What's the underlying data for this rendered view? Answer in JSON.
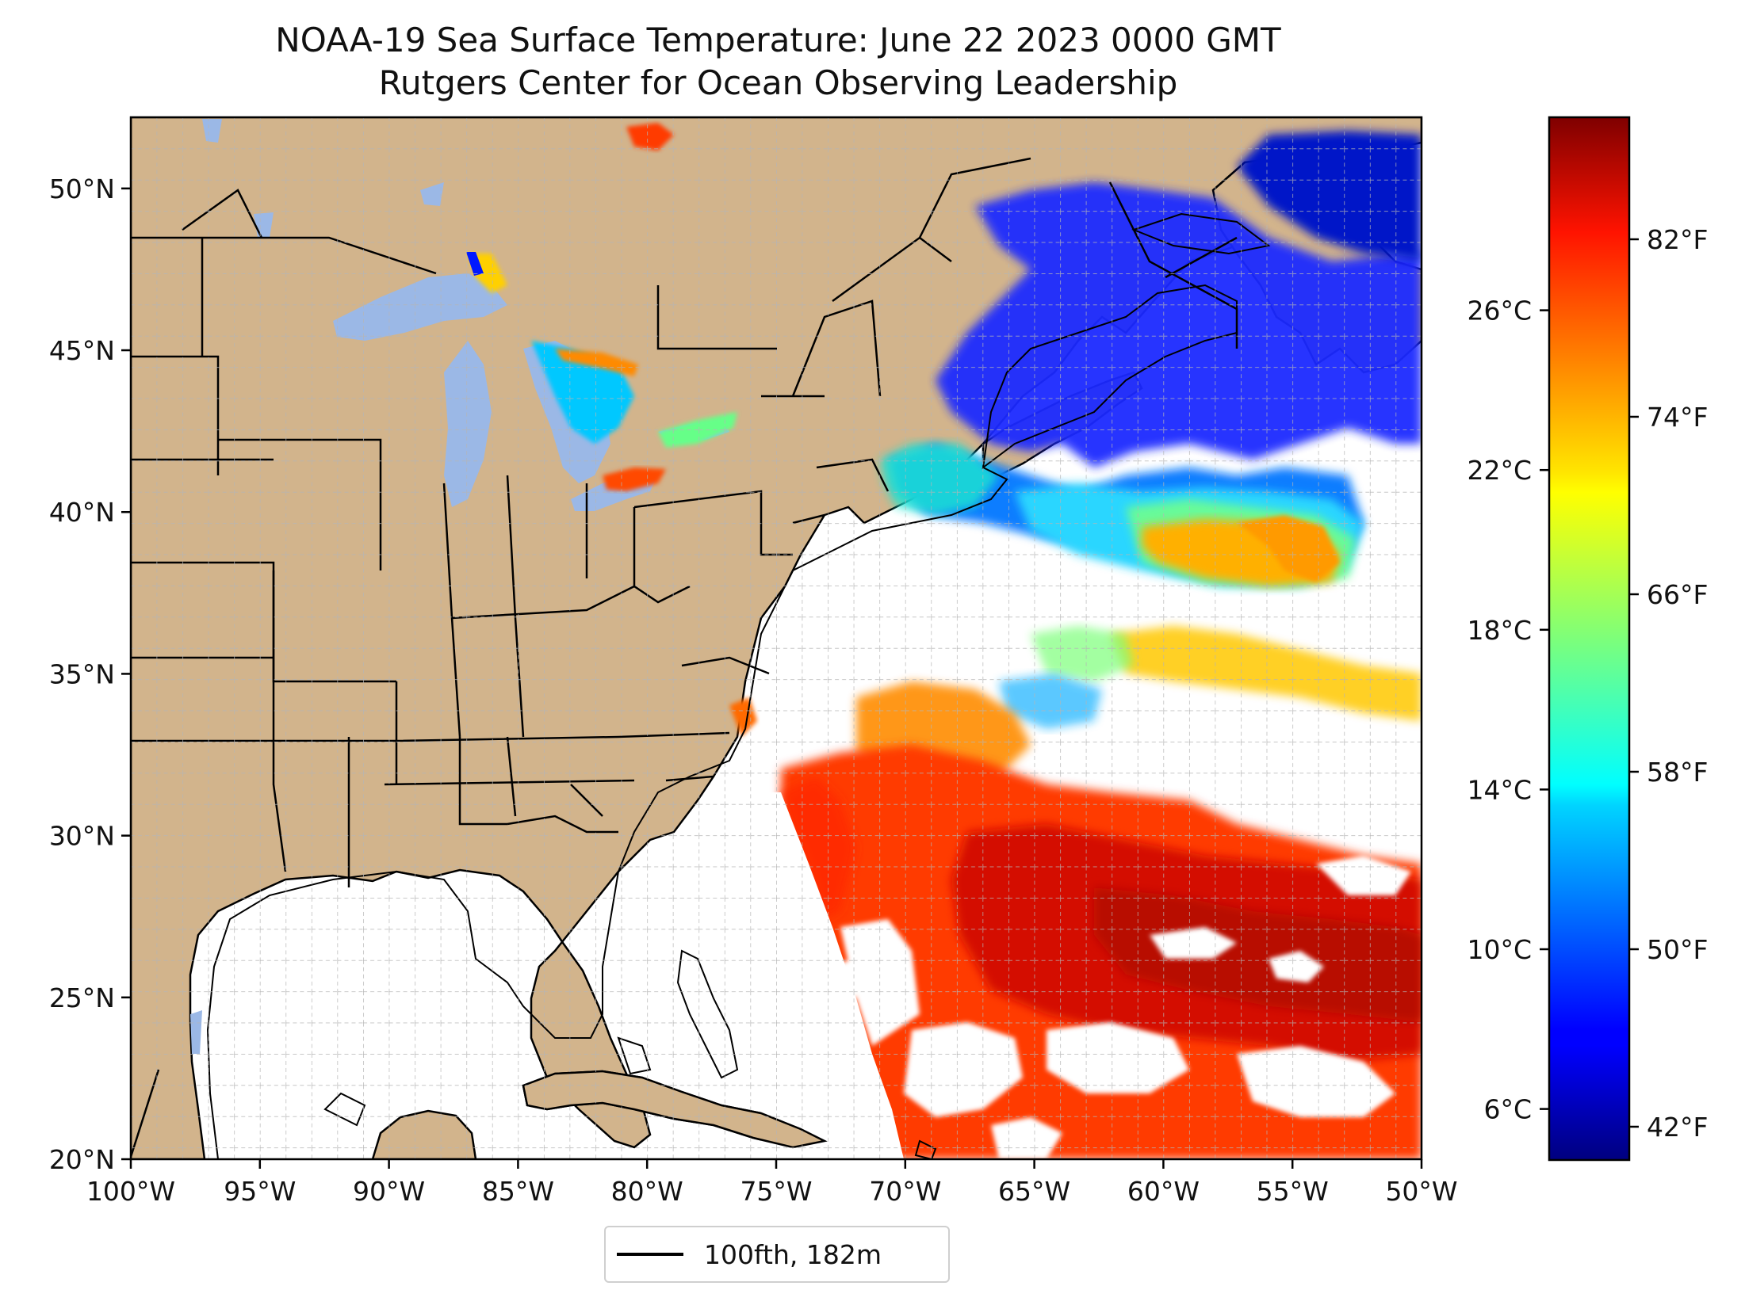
{
  "title_line1": "NOAA-19 Sea Surface Temperature: June 22 2023 0000 GMT",
  "title_line2": "Rutgers Center for Ocean Observing Leadership",
  "map": {
    "type": "sea-surface-temperature-map",
    "lon_range": [
      -100,
      -50
    ],
    "lat_range": [
      20,
      52.2
    ],
    "lon_ticks": [
      "100°W",
      "95°W",
      "90°W",
      "85°W",
      "80°W",
      "75°W",
      "70°W",
      "65°W",
      "60°W",
      "55°W",
      "50°W"
    ],
    "lat_ticks": [
      "20°N",
      "25°N",
      "30°N",
      "35°N",
      "40°N",
      "45°N",
      "50°N"
    ],
    "grid": true,
    "colors": {
      "land": "#d2b48c",
      "lakes": "#9bb8e6",
      "no_data": "#ffffff",
      "borders": "#000000",
      "grid": "#b5b5b5"
    }
  },
  "colorbar": {
    "colormap": "jet",
    "celsius_ticks": [
      "6°C",
      "10°C",
      "14°C",
      "18°C",
      "22°C",
      "26°C"
    ],
    "fahrenheit_ticks": [
      "42°F",
      "50°F",
      "58°F",
      "66°F",
      "74°F",
      "82°F"
    ],
    "range_f": [
      40.5,
      87.5
    ]
  },
  "legend": {
    "label": "100fth, 182m"
  }
}
